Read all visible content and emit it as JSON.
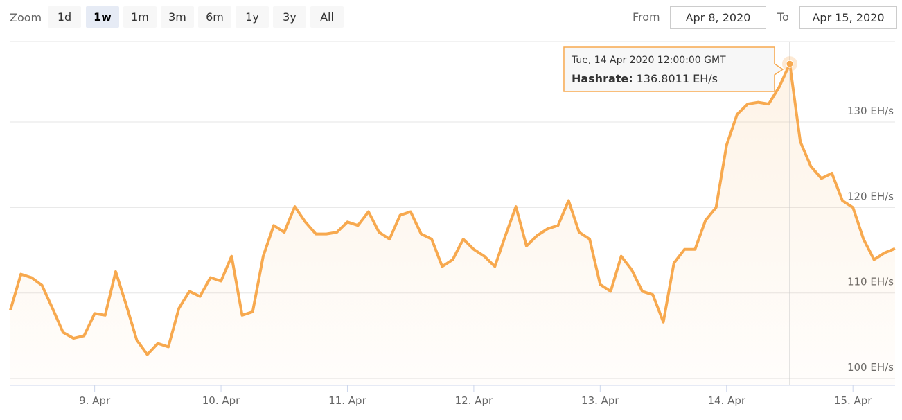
{
  "range_selector": {
    "label": "Zoom",
    "buttons": [
      "1d",
      "1w",
      "1m",
      "3m",
      "6m",
      "1y",
      "3y",
      "All"
    ],
    "selected": 1
  },
  "date_range": {
    "from_label": "From",
    "from": "Apr 8, 2020",
    "to_label": "To",
    "to": "Apr 15, 2020"
  },
  "chart_data": {
    "type": "area",
    "x": [
      "2020-04-08T08:00",
      "2020-04-08T10:00",
      "2020-04-08T12:00",
      "2020-04-08T14:00",
      "2020-04-08T16:00",
      "2020-04-08T18:00",
      "2020-04-08T20:00",
      "2020-04-08T22:00",
      "2020-04-09T00:00",
      "2020-04-09T02:00",
      "2020-04-09T04:00",
      "2020-04-09T06:00",
      "2020-04-09T08:00",
      "2020-04-09T10:00",
      "2020-04-09T12:00",
      "2020-04-09T14:00",
      "2020-04-09T16:00",
      "2020-04-09T18:00",
      "2020-04-09T20:00",
      "2020-04-09T22:00",
      "2020-04-10T00:00",
      "2020-04-10T02:00",
      "2020-04-10T04:00",
      "2020-04-10T06:00",
      "2020-04-10T08:00",
      "2020-04-10T10:00",
      "2020-04-10T12:00",
      "2020-04-10T14:00",
      "2020-04-10T16:00",
      "2020-04-10T18:00",
      "2020-04-10T20:00",
      "2020-04-10T22:00",
      "2020-04-11T00:00",
      "2020-04-11T02:00",
      "2020-04-11T04:00",
      "2020-04-11T06:00",
      "2020-04-11T08:00",
      "2020-04-11T10:00",
      "2020-04-11T12:00",
      "2020-04-11T14:00",
      "2020-04-11T16:00",
      "2020-04-11T18:00",
      "2020-04-11T20:00",
      "2020-04-11T22:00",
      "2020-04-12T00:00",
      "2020-04-12T02:00",
      "2020-04-12T04:00",
      "2020-04-12T06:00",
      "2020-04-12T08:00",
      "2020-04-12T10:00",
      "2020-04-12T12:00",
      "2020-04-12T14:00",
      "2020-04-12T16:00",
      "2020-04-12T18:00",
      "2020-04-12T20:00",
      "2020-04-12T22:00",
      "2020-04-13T00:00",
      "2020-04-13T02:00",
      "2020-04-13T04:00",
      "2020-04-13T06:00",
      "2020-04-13T08:00",
      "2020-04-13T10:00",
      "2020-04-13T12:00",
      "2020-04-13T14:00",
      "2020-04-13T16:00",
      "2020-04-13T18:00",
      "2020-04-13T20:00",
      "2020-04-13T22:00",
      "2020-04-14T00:00",
      "2020-04-14T02:00",
      "2020-04-14T04:00",
      "2020-04-14T06:00",
      "2020-04-14T08:00",
      "2020-04-14T10:00",
      "2020-04-14T12:00",
      "2020-04-14T14:00",
      "2020-04-14T16:00",
      "2020-04-14T18:00",
      "2020-04-14T20:00",
      "2020-04-14T22:00",
      "2020-04-15T00:00",
      "2020-04-15T02:00",
      "2020-04-15T04:00",
      "2020-04-15T06:00",
      "2020-04-15T08:00"
    ],
    "series": [
      {
        "name": "Hashrate",
        "color": "#f7a94f",
        "values": [
          108.0,
          112.2,
          111.8,
          110.9,
          108.2,
          105.4,
          104.7,
          105.0,
          107.6,
          107.4,
          112.5,
          108.6,
          104.5,
          102.8,
          104.1,
          103.7,
          108.2,
          110.2,
          109.6,
          111.8,
          111.4,
          114.3,
          107.4,
          107.8,
          114.3,
          117.9,
          117.1,
          120.1,
          118.3,
          116.9,
          116.9,
          117.1,
          118.3,
          117.9,
          119.5,
          117.1,
          116.3,
          119.1,
          119.5,
          116.9,
          116.3,
          113.1,
          113.9,
          116.3,
          115.1,
          114.3,
          113.1,
          116.7,
          120.1,
          115.5,
          116.7,
          117.5,
          117.9,
          120.8,
          117.1,
          116.3,
          111.0,
          110.2,
          114.3,
          112.7,
          110.2,
          109.8,
          106.6,
          113.5,
          115.1,
          115.1,
          118.5,
          120.0,
          127.3,
          130.9,
          132.1,
          132.3,
          132.1,
          134.1,
          136.8011,
          127.7,
          124.8,
          123.4,
          124.0,
          120.8,
          120.0,
          116.3,
          113.9,
          114.7,
          115.2
        ]
      }
    ],
    "xlim": [
      "2020-04-08T08:00",
      "2020-04-15T08:00"
    ],
    "xticks": [
      {
        "value": "2020-04-09T00:00",
        "label": "9. Apr"
      },
      {
        "value": "2020-04-10T00:00",
        "label": "10. Apr"
      },
      {
        "value": "2020-04-11T00:00",
        "label": "11. Apr"
      },
      {
        "value": "2020-04-12T00:00",
        "label": "12. Apr"
      },
      {
        "value": "2020-04-13T00:00",
        "label": "13. Apr"
      },
      {
        "value": "2020-04-14T00:00",
        "label": "14. Apr"
      },
      {
        "value": "2020-04-15T00:00",
        "label": "15. Apr"
      }
    ],
    "ylim": [
      99.2,
      139.4
    ],
    "yticks": [
      {
        "value": 100,
        "label": "100 EH/s"
      },
      {
        "value": 110,
        "label": "110 EH/s"
      },
      {
        "value": 120,
        "label": "120 EH/s"
      },
      {
        "value": 130,
        "label": "130 EH/s"
      }
    ],
    "grid": true,
    "tooltip": {
      "header": "Tue, 14 Apr 2020 12:00:00 GMT",
      "label": "Hashrate:",
      "value": "136.8011 EH/s"
    }
  }
}
